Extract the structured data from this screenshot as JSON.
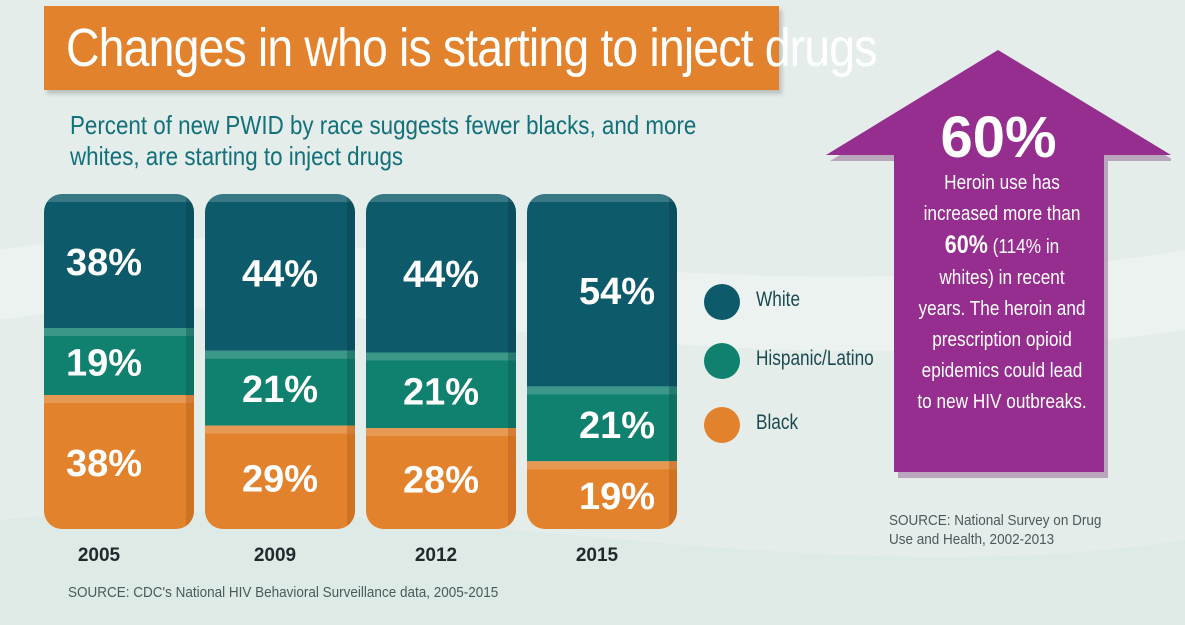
{
  "title": "Changes in who is starting to inject drugs",
  "subtitle": "Percent of new PWID by race suggests fewer blacks, and more whites, are starting to inject drugs",
  "callout": {
    "big": "60%",
    "text_1": "Heroin use has increased more than ",
    "text_highlight": "60%",
    "text_2": " (114% in whites) in recent years. The heroin and prescription opioid epidemics could lead to new HIV outbreaks."
  },
  "source_right": "SOURCE: National Survey on Drug Use and Health, 2002-2013",
  "source_bottom": "SOURCE: CDC's National HIV Behavioral Surveillance data, 2005-2015",
  "colors": {
    "white": "#0d5a6a",
    "hispanic": "#10816e",
    "black": "#e2822c",
    "arrow": "#952e8e",
    "title_bar": "#e2822c"
  },
  "chart_data": {
    "type": "bar",
    "stacked": true,
    "categories": [
      "2005",
      "2009",
      "2012",
      "2015"
    ],
    "series": [
      {
        "name": "White",
        "values": [
          38,
          44,
          44,
          54
        ],
        "labels": [
          "38%",
          "44%",
          "44%",
          "54%"
        ]
      },
      {
        "name": "Hispanic/Latino",
        "values": [
          19,
          21,
          21,
          21
        ],
        "labels": [
          "19%",
          "21%",
          "21%",
          "21%"
        ]
      },
      {
        "name": "Black",
        "values": [
          38,
          29,
          28,
          19
        ],
        "labels": [
          "38%",
          "29%",
          "28%",
          "19%"
        ]
      }
    ],
    "legend": [
      "White",
      "Hispanic/Latino",
      "Black"
    ],
    "legend_position": "right",
    "grid": false,
    "ylim": [
      0,
      100
    ]
  }
}
